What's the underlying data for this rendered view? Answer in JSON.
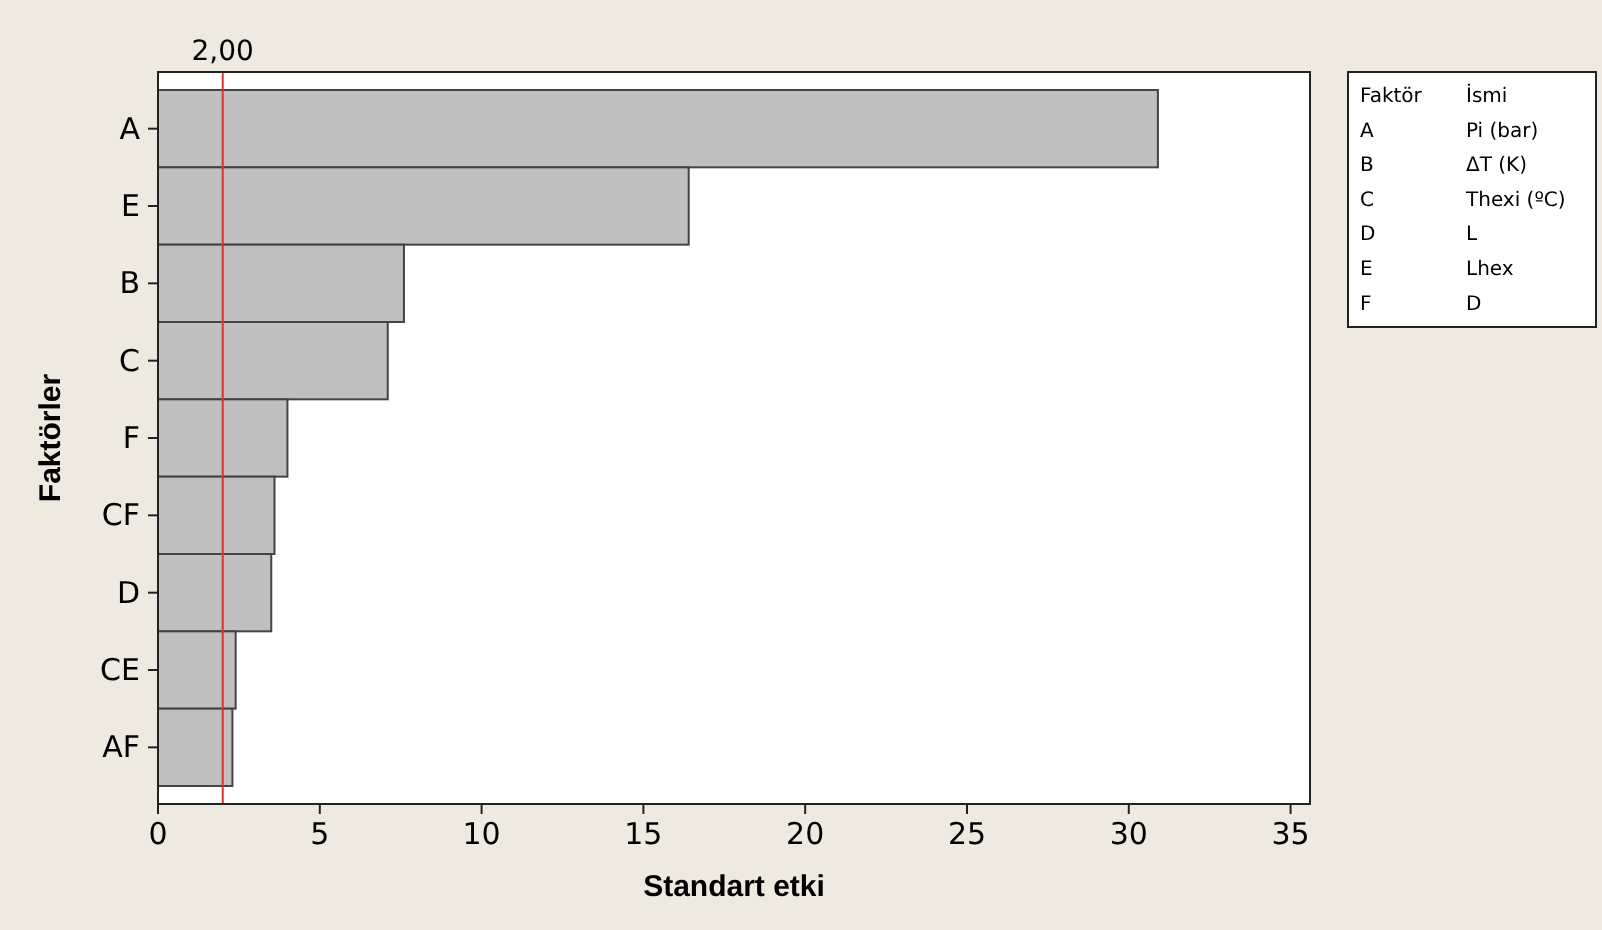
{
  "chart_data": {
    "type": "bar",
    "orientation": "horizontal",
    "xlabel": "Standart etki",
    "ylabel": "Faktörler",
    "categories": [
      "A",
      "E",
      "B",
      "C",
      "F",
      "CF",
      "D",
      "CE",
      "AF"
    ],
    "values": [
      30.9,
      16.4,
      7.6,
      7.1,
      4.0,
      3.6,
      3.5,
      2.4,
      2.3
    ],
    "color": "#c0c0c0",
    "xlim": [
      0,
      35.6
    ],
    "xticks": [
      0,
      5,
      10,
      15,
      20,
      25,
      30,
      35
    ],
    "ref_lines": [
      {
        "axis": "x",
        "value": 2.0,
        "label": "2,00",
        "color": "#e03030"
      }
    ],
    "annotations": [
      "Faktör",
      "İsmi",
      "A",
      "Pi (bar)",
      "B",
      "ΔT (K)",
      "C",
      "Thexi (ºC)",
      "D",
      "L",
      "E",
      "Lhex",
      "F",
      "D"
    ],
    "grid": false
  }
}
